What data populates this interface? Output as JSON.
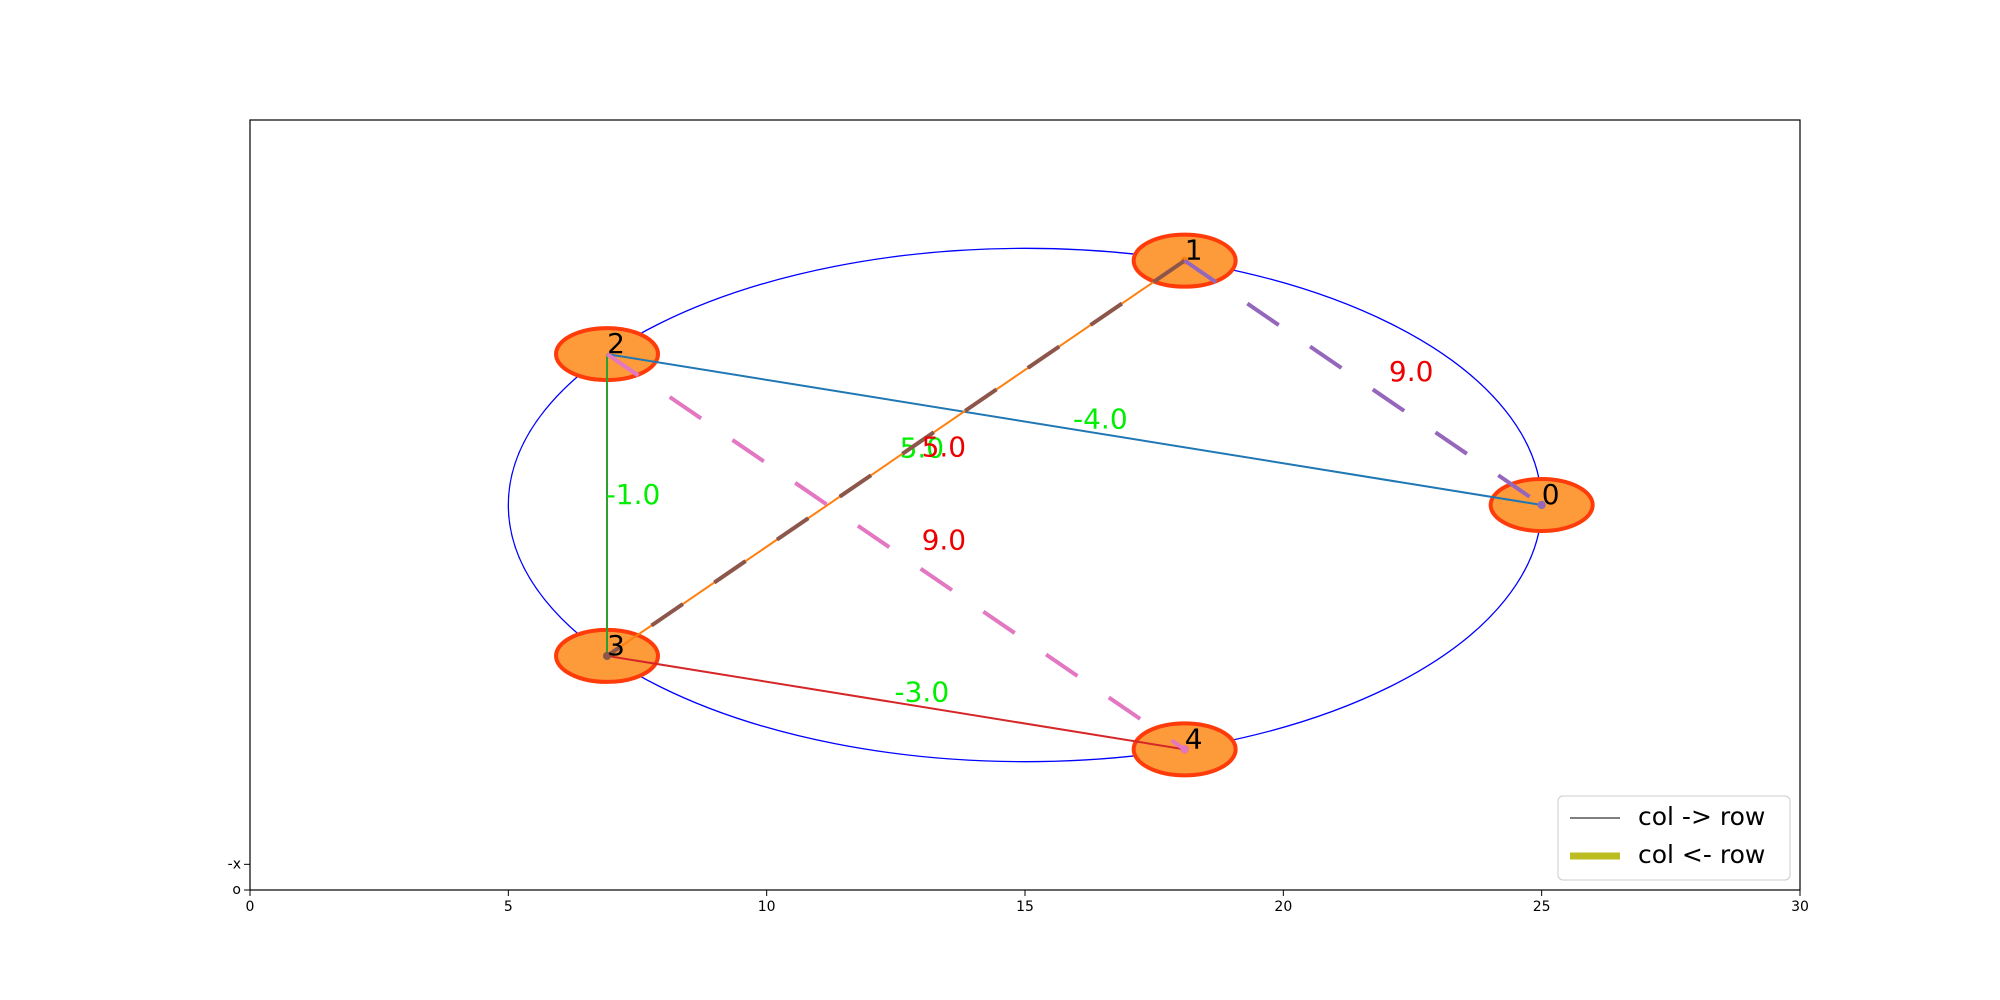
{
  "chart_data": {
    "type": "graph",
    "xlim": [
      0,
      30
    ],
    "ylim": [
      0,
      15
    ],
    "xticks": [
      0,
      5,
      10,
      15,
      20,
      25,
      30
    ],
    "yticks": [
      {
        "value": 0,
        "label": "o"
      },
      {
        "value": 0.5,
        "label": "-x"
      }
    ],
    "nodes": [
      {
        "label": "0",
        "x": 25,
        "y": 7.5
      },
      {
        "label": "1",
        "x": 18.09,
        "y": 12.26
      },
      {
        "label": "2",
        "x": 6.91,
        "y": 10.44
      },
      {
        "label": "3",
        "x": 6.91,
        "y": 4.56
      },
      {
        "label": "4",
        "x": 18.09,
        "y": 2.74
      }
    ],
    "node_color": "#fd9a3a",
    "node_edge_color": "#ff3b0a",
    "edges": [
      {
        "from": 2,
        "to": 0,
        "label": "-4.0",
        "color": "#1f77b4",
        "dashed": false,
        "label_color": "#00ee00"
      },
      {
        "from": 2,
        "to": 3,
        "label": "-1.0",
        "color": "#2ca02c",
        "dashed": false,
        "label_color": "#00ee00"
      },
      {
        "from": 3,
        "to": 4,
        "label": "-3.0",
        "color": "#d62728",
        "dashed": false,
        "label_color": "#00ee00"
      },
      {
        "from": 3,
        "to": 1,
        "label": "5.0",
        "color": "#ff7f0e",
        "dashed": false,
        "label_color": "#00ee00"
      },
      {
        "from": 1,
        "to": 3,
        "label": "5.0",
        "color": "#8c564b",
        "dashed": true,
        "label_color": "#ee0000"
      },
      {
        "from": 1,
        "to": 0,
        "label": "9.0",
        "color": "#9467bd",
        "dashed": true,
        "label_color": "#ee0000"
      },
      {
        "from": 2,
        "to": 4,
        "label": "9.0",
        "color": "#e377c2",
        "dashed": true,
        "label_color": "#ee0000"
      }
    ],
    "legend": [
      {
        "name": "col -> row",
        "color": "#7f7f7f",
        "width": 2
      },
      {
        "name": "col <- row",
        "color": "#bcbd22",
        "width": 7
      }
    ],
    "legend_position": "lower right"
  }
}
